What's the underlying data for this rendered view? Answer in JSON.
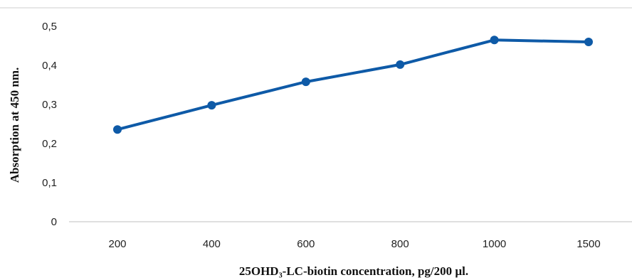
{
  "chart_data": {
    "type": "line",
    "title": "",
    "xlabel": "25OHD₃-LC-biotin  concentration, pg/200  µl.",
    "ylabel": "Absorption at 450  nm.",
    "categories": [
      "200",
      "400",
      "600",
      "800",
      "1000",
      "1500"
    ],
    "series": [
      {
        "values": [
          0.236,
          0.298,
          0.358,
          0.402,
          0.465,
          0.46
        ]
      }
    ],
    "y_ticks": [
      "0",
      "0,1",
      "0,2",
      "0,3",
      "0,4",
      "0,5"
    ],
    "ylim": [
      0,
      0.5
    ],
    "grid": false,
    "legend": "none",
    "colors": {
      "series": "#0e5aa7",
      "axis": "#bfbfbf"
    }
  }
}
